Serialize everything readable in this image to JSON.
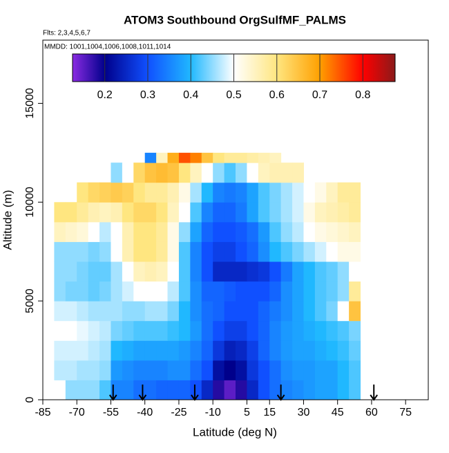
{
  "chart_data": {
    "type": "heatmap",
    "title": "ATOM3 Southbound OrgSulfMF_PALMS",
    "subtitle": "Flts: 2,3,4,5,6,7",
    "annotation": "MMDD: 1001,1004,1006,1008,1011,1014",
    "x_label": "Latitude (deg N)",
    "y_label": "Altitude (m)",
    "xlim": [
      -85,
      85
    ],
    "ylim": [
      0,
      18200
    ],
    "xticks": [
      -85,
      -70,
      -55,
      -40,
      -25,
      -10,
      5,
      15,
      30,
      45,
      60,
      75
    ],
    "yticks": [
      0,
      5000,
      10000,
      15000
    ],
    "x_edges": [
      -80,
      -75,
      -70,
      -65,
      -60,
      -55,
      -50,
      -45,
      -40,
      -35,
      -30,
      -25,
      -20,
      -15,
      -10,
      -5,
      0,
      5,
      10,
      15,
      20,
      25,
      30,
      35,
      40,
      45,
      50,
      55
    ],
    "y_edges": [
      0,
      1000,
      2000,
      3000,
      4000,
      5000,
      6000,
      7000,
      8000,
      9000,
      10000,
      11000,
      12000,
      12500
    ],
    "z": [
      [
        null,
        0.45,
        0.45,
        0.45,
        0.42,
        0.35,
        0.35,
        0.33,
        0.33,
        0.32,
        0.32,
        0.32,
        0.3,
        0.25,
        0.18,
        0.15,
        0.18,
        0.25,
        0.3,
        0.33,
        0.35,
        0.36,
        0.37,
        0.38,
        0.38,
        0.4,
        0.42
      ],
      [
        0.47,
        0.47,
        0.46,
        0.46,
        0.45,
        0.37,
        0.36,
        0.35,
        0.35,
        0.35,
        0.36,
        0.36,
        0.33,
        0.3,
        0.22,
        0.2,
        0.22,
        0.27,
        0.3,
        0.33,
        0.36,
        0.37,
        0.37,
        0.38,
        0.38,
        0.4,
        0.42
      ],
      [
        0.48,
        0.48,
        0.48,
        0.47,
        0.46,
        0.4,
        0.39,
        0.38,
        0.38,
        0.38,
        0.38,
        0.37,
        0.35,
        0.32,
        0.27,
        0.24,
        0.25,
        0.28,
        0.32,
        0.35,
        0.37,
        0.38,
        0.38,
        0.39,
        0.4,
        0.41,
        0.43
      ],
      [
        0.5,
        0.5,
        0.49,
        0.48,
        0.47,
        0.44,
        0.43,
        0.42,
        0.42,
        0.42,
        0.41,
        0.4,
        0.37,
        0.33,
        0.3,
        0.28,
        0.28,
        0.3,
        0.32,
        0.35,
        0.37,
        0.38,
        0.39,
        0.4,
        0.41,
        0.42,
        0.44
      ],
      [
        0.48,
        0.48,
        0.47,
        0.46,
        0.46,
        0.46,
        0.45,
        0.45,
        0.46,
        0.46,
        0.44,
        0.4,
        0.36,
        0.33,
        0.32,
        0.3,
        0.3,
        0.3,
        0.32,
        0.34,
        0.36,
        0.38,
        0.4,
        0.42,
        0.44,
        0.5,
        0.65
      ],
      [
        0.45,
        0.44,
        0.44,
        0.43,
        0.44,
        0.46,
        0.48,
        0.5,
        0.5,
        0.5,
        0.47,
        0.42,
        0.36,
        0.32,
        0.32,
        0.31,
        0.3,
        0.3,
        0.3,
        0.32,
        0.36,
        0.38,
        0.4,
        0.42,
        0.43,
        0.45,
        0.58
      ],
      [
        0.45,
        0.45,
        0.44,
        0.43,
        0.43,
        0.46,
        0.5,
        0.55,
        0.56,
        0.55,
        0.5,
        0.42,
        0.35,
        0.3,
        0.25,
        0.25,
        0.25,
        0.26,
        0.27,
        0.3,
        0.34,
        0.38,
        0.4,
        0.42,
        0.43,
        0.45,
        0.5
      ],
      [
        0.45,
        0.45,
        0.45,
        0.44,
        0.45,
        0.5,
        0.56,
        0.6,
        0.6,
        0.58,
        0.52,
        0.42,
        0.35,
        0.3,
        0.28,
        0.28,
        0.3,
        0.32,
        0.36,
        0.4,
        0.42,
        0.44,
        0.46,
        0.48,
        0.5,
        0.52,
        0.52
      ],
      [
        0.55,
        0.54,
        0.53,
        0.5,
        0.47,
        0.5,
        0.56,
        0.6,
        0.6,
        0.58,
        0.52,
        0.45,
        0.38,
        0.32,
        0.3,
        0.3,
        0.31,
        0.33,
        0.37,
        0.42,
        0.45,
        0.47,
        0.5,
        0.52,
        0.53,
        0.54,
        0.55
      ],
      [
        0.6,
        0.6,
        0.58,
        0.56,
        0.55,
        0.56,
        0.6,
        0.62,
        0.62,
        0.6,
        0.55,
        0.5,
        0.42,
        0.35,
        0.32,
        0.32,
        0.34,
        0.38,
        0.42,
        0.44,
        0.46,
        0.48,
        0.52,
        0.55,
        0.56,
        0.57,
        0.58
      ],
      [
        null,
        null,
        0.6,
        0.62,
        0.63,
        0.64,
        0.63,
        0.6,
        0.58,
        0.58,
        0.56,
        0.52,
        0.46,
        0.4,
        0.35,
        0.34,
        0.35,
        0.38,
        0.42,
        0.44,
        0.46,
        0.48,
        0.5,
        0.52,
        0.55,
        0.58,
        0.58
      ],
      [
        null,
        null,
        null,
        null,
        null,
        0.45,
        0.5,
        0.62,
        0.65,
        0.66,
        0.65,
        0.6,
        0.55,
        0.5,
        0.45,
        0.42,
        0.45,
        0.5,
        0.55,
        0.56,
        0.56,
        0.56,
        null,
        null,
        null,
        null,
        null
      ],
      [
        null,
        null,
        null,
        null,
        null,
        null,
        null,
        null,
        0.35,
        0.55,
        0.68,
        0.75,
        0.72,
        0.65,
        0.6,
        0.58,
        0.58,
        0.57,
        0.56,
        0.55,
        null,
        null,
        null,
        null,
        null,
        null,
        null
      ]
    ],
    "markers": [
      -54,
      -41,
      -18,
      20,
      61
    ],
    "colorbar": {
      "lim": [
        0.125,
        0.875
      ],
      "ticks": [
        0.2,
        0.3,
        0.4,
        0.5,
        0.6,
        0.7,
        0.8
      ],
      "stops": [
        [
          0.125,
          "#8a2be2"
        ],
        [
          0.2,
          "#00008b"
        ],
        [
          0.3,
          "#1050ff"
        ],
        [
          0.4,
          "#20b8ff"
        ],
        [
          0.5,
          "#ffffff"
        ],
        [
          0.6,
          "#ffe680"
        ],
        [
          0.7,
          "#ffa000"
        ],
        [
          0.8,
          "#ff0000"
        ],
        [
          0.875,
          "#8b1a1a"
        ]
      ]
    }
  }
}
